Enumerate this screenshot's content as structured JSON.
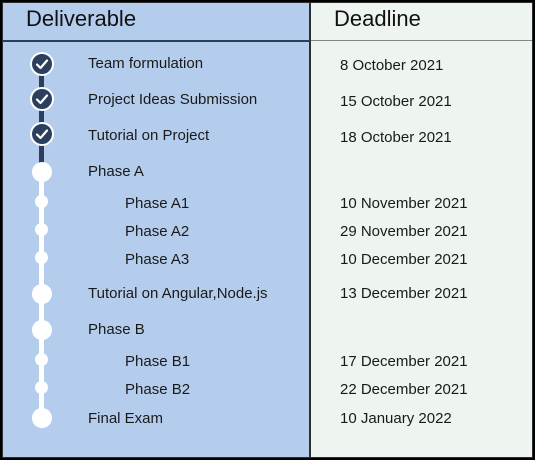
{
  "header": {
    "deliverable": "Deliverable",
    "deadline": "Deadline"
  },
  "colors": {
    "left_panel": "#b5cded",
    "right_panel": "#eef4ef",
    "completed_track": "#2c3f5f"
  },
  "rows": [
    {
      "label": "Team formulation",
      "deadline": "8 October 2021",
      "status": "done"
    },
    {
      "label": "Project Ideas Submission",
      "deadline": "15 October 2021",
      "status": "done"
    },
    {
      "label": "Tutorial on Project",
      "deadline": "18 October 2021",
      "status": "done"
    },
    {
      "label": "Phase A",
      "deadline": "",
      "status": "pending"
    },
    {
      "label": "Phase A1",
      "deadline": "10 November 2021",
      "status": "pending"
    },
    {
      "label": "Phase A2",
      "deadline": "29 November 2021",
      "status": "pending"
    },
    {
      "label": "Phase A3",
      "deadline": "10 December 2021",
      "status": "pending"
    },
    {
      "label": "Tutorial on Angular,Node.js",
      "deadline": "13 December 2021",
      "status": "pending"
    },
    {
      "label": "Phase B",
      "deadline": "",
      "status": "pending"
    },
    {
      "label": "Phase B1",
      "deadline": "17 December 2021",
      "status": "pending"
    },
    {
      "label": "Phase B2",
      "deadline": "22 December 2021",
      "status": "pending"
    },
    {
      "label": "Final Exam",
      "deadline": "10 January 2022",
      "status": "pending"
    }
  ]
}
